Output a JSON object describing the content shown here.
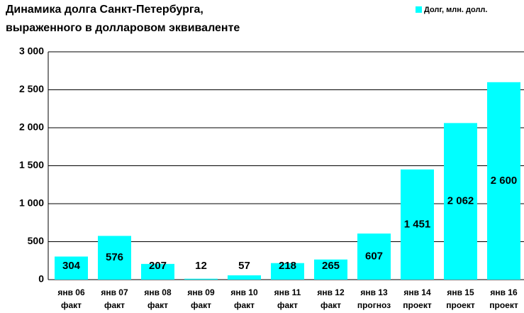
{
  "chart_data": {
    "type": "bar",
    "title": [
      "Динамика долга Санкт-Петербурга,",
      "выраженного в долларовом эквиваленте"
    ],
    "categories": [
      [
        "янв 06",
        "факт"
      ],
      [
        "янв 07",
        "факт"
      ],
      [
        "янв 08",
        "факт"
      ],
      [
        "янв 09",
        "факт"
      ],
      [
        "янв 10",
        "факт"
      ],
      [
        "янв 11",
        "факт"
      ],
      [
        "янв 12",
        "факт"
      ],
      [
        "янв 13",
        "прогноз"
      ],
      [
        "янв 14",
        "проект"
      ],
      [
        "янв 15",
        "проект"
      ],
      [
        "янв 16",
        "проект"
      ]
    ],
    "series": [
      {
        "name": "Долг, млн. долл.",
        "color": "#00ffff",
        "values": [
          304,
          576,
          207,
          12,
          57,
          218,
          265,
          607,
          1451,
          2062,
          2600
        ],
        "value_labels": [
          "304",
          "576",
          "207",
          "12",
          "57",
          "218",
          "265",
          "607",
          "1 451",
          "2 062",
          "2 600"
        ]
      }
    ],
    "ylim": [
      0,
      3000
    ],
    "yticks": [
      0,
      500,
      {
        "value": 1000,
        "label": "1 000"
      },
      {
        "value": 1500,
        "label": "1 500"
      },
      {
        "value": 2000,
        "label": "2 000"
      },
      {
        "value": 2500,
        "label": "2 500"
      },
      {
        "value": 3000,
        "label": "3 000"
      }
    ],
    "grid": true
  }
}
